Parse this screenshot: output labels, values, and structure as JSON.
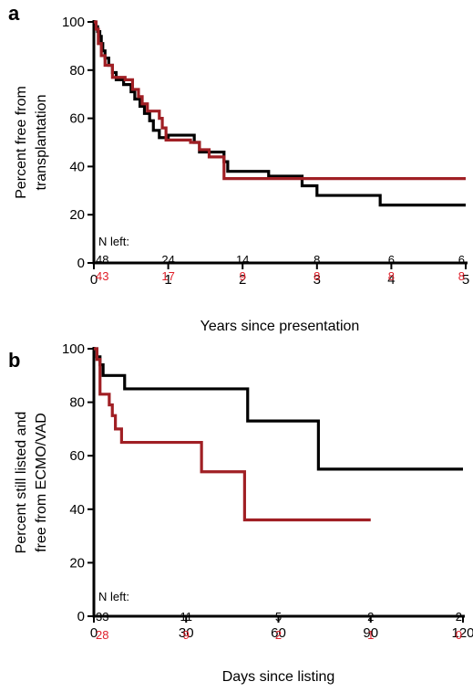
{
  "colors": {
    "black_series": "#000000",
    "red_series": "#a01f24",
    "red_text": "#e0202a"
  },
  "chart_data": [
    {
      "panel_label": "a",
      "type": "line",
      "xlabel": "Years since presentation",
      "ylabel_lines": [
        "Percent free from",
        "transplantation"
      ],
      "xlim": [
        0,
        5
      ],
      "ylim": [
        0,
        100
      ],
      "xticks": [
        0,
        1,
        2,
        3,
        4,
        5
      ],
      "yticks": [
        0,
        20,
        40,
        60,
        80,
        100
      ],
      "grid": false,
      "n_left_title": "N left:",
      "n_left_x": [
        0,
        1,
        2,
        3,
        4,
        5
      ],
      "series": [
        {
          "color": "black",
          "n_left": [
            "48",
            "24",
            "14",
            "8",
            "6",
            "6"
          ],
          "steps": [
            [
              0,
              100
            ],
            [
              0.02,
              98
            ],
            [
              0.05,
              96
            ],
            [
              0.08,
              94
            ],
            [
              0.1,
              91
            ],
            [
              0.12,
              88
            ],
            [
              0.15,
              85
            ],
            [
              0.2,
              82
            ],
            [
              0.25,
              79
            ],
            [
              0.3,
              76
            ],
            [
              0.4,
              74
            ],
            [
              0.5,
              71
            ],
            [
              0.55,
              68
            ],
            [
              0.62,
              65
            ],
            [
              0.68,
              62
            ],
            [
              0.75,
              59
            ],
            [
              0.8,
              55
            ],
            [
              0.88,
              52
            ],
            [
              1.0,
              53
            ],
            [
              1.35,
              50
            ],
            [
              1.42,
              46
            ],
            [
              1.75,
              42
            ],
            [
              1.8,
              38
            ],
            [
              2.35,
              36
            ],
            [
              2.8,
              32
            ],
            [
              3.0,
              28
            ],
            [
              3.85,
              24
            ],
            [
              5.0,
              24
            ]
          ]
        },
        {
          "color": "red",
          "n_left": [
            "43",
            "17",
            "9",
            "8",
            "8",
            "8"
          ],
          "steps": [
            [
              0,
              100
            ],
            [
              0.03,
              97
            ],
            [
              0.06,
              91
            ],
            [
              0.1,
              86
            ],
            [
              0.15,
              82
            ],
            [
              0.25,
              77
            ],
            [
              0.42,
              76
            ],
            [
              0.52,
              72
            ],
            [
              0.6,
              69
            ],
            [
              0.65,
              66
            ],
            [
              0.72,
              63
            ],
            [
              0.88,
              60
            ],
            [
              0.92,
              56
            ],
            [
              0.97,
              51
            ],
            [
              1.3,
              50
            ],
            [
              1.42,
              47
            ],
            [
              1.55,
              44
            ],
            [
              1.75,
              35
            ],
            [
              5.0,
              35
            ]
          ]
        }
      ]
    },
    {
      "panel_label": "b",
      "type": "line",
      "xlabel": "Days since listing",
      "ylabel_lines": [
        "Percent still listed and",
        "free from ECMO/VAD"
      ],
      "xlim": [
        0,
        120
      ],
      "ylim": [
        0,
        100
      ],
      "xticks": [
        0,
        30,
        60,
        90,
        120
      ],
      "yticks": [
        0,
        20,
        40,
        60,
        80,
        100
      ],
      "grid": false,
      "n_left_title": "N left:",
      "n_left_x": [
        0,
        30,
        60,
        90,
        120
      ],
      "series": [
        {
          "color": "black",
          "n_left": [
            "33",
            "11",
            "5",
            "2",
            "2"
          ],
          "steps": [
            [
              0,
              100
            ],
            [
              1,
              97
            ],
            [
              2,
              94
            ],
            [
              3,
              90
            ],
            [
              10,
              85
            ],
            [
              50,
              73
            ],
            [
              73,
              55
            ],
            [
              120,
              55
            ]
          ]
        },
        {
          "color": "red",
          "n_left": [
            "28",
            "9",
            "2",
            "1",
            "0"
          ],
          "steps": [
            [
              0,
              100
            ],
            [
              1,
              96
            ],
            [
              2,
              83
            ],
            [
              5,
              79
            ],
            [
              6,
              75
            ],
            [
              7,
              70
            ],
            [
              9,
              65
            ],
            [
              35,
              54
            ],
            [
              49,
              36
            ],
            [
              90,
              36
            ]
          ]
        }
      ]
    }
  ]
}
